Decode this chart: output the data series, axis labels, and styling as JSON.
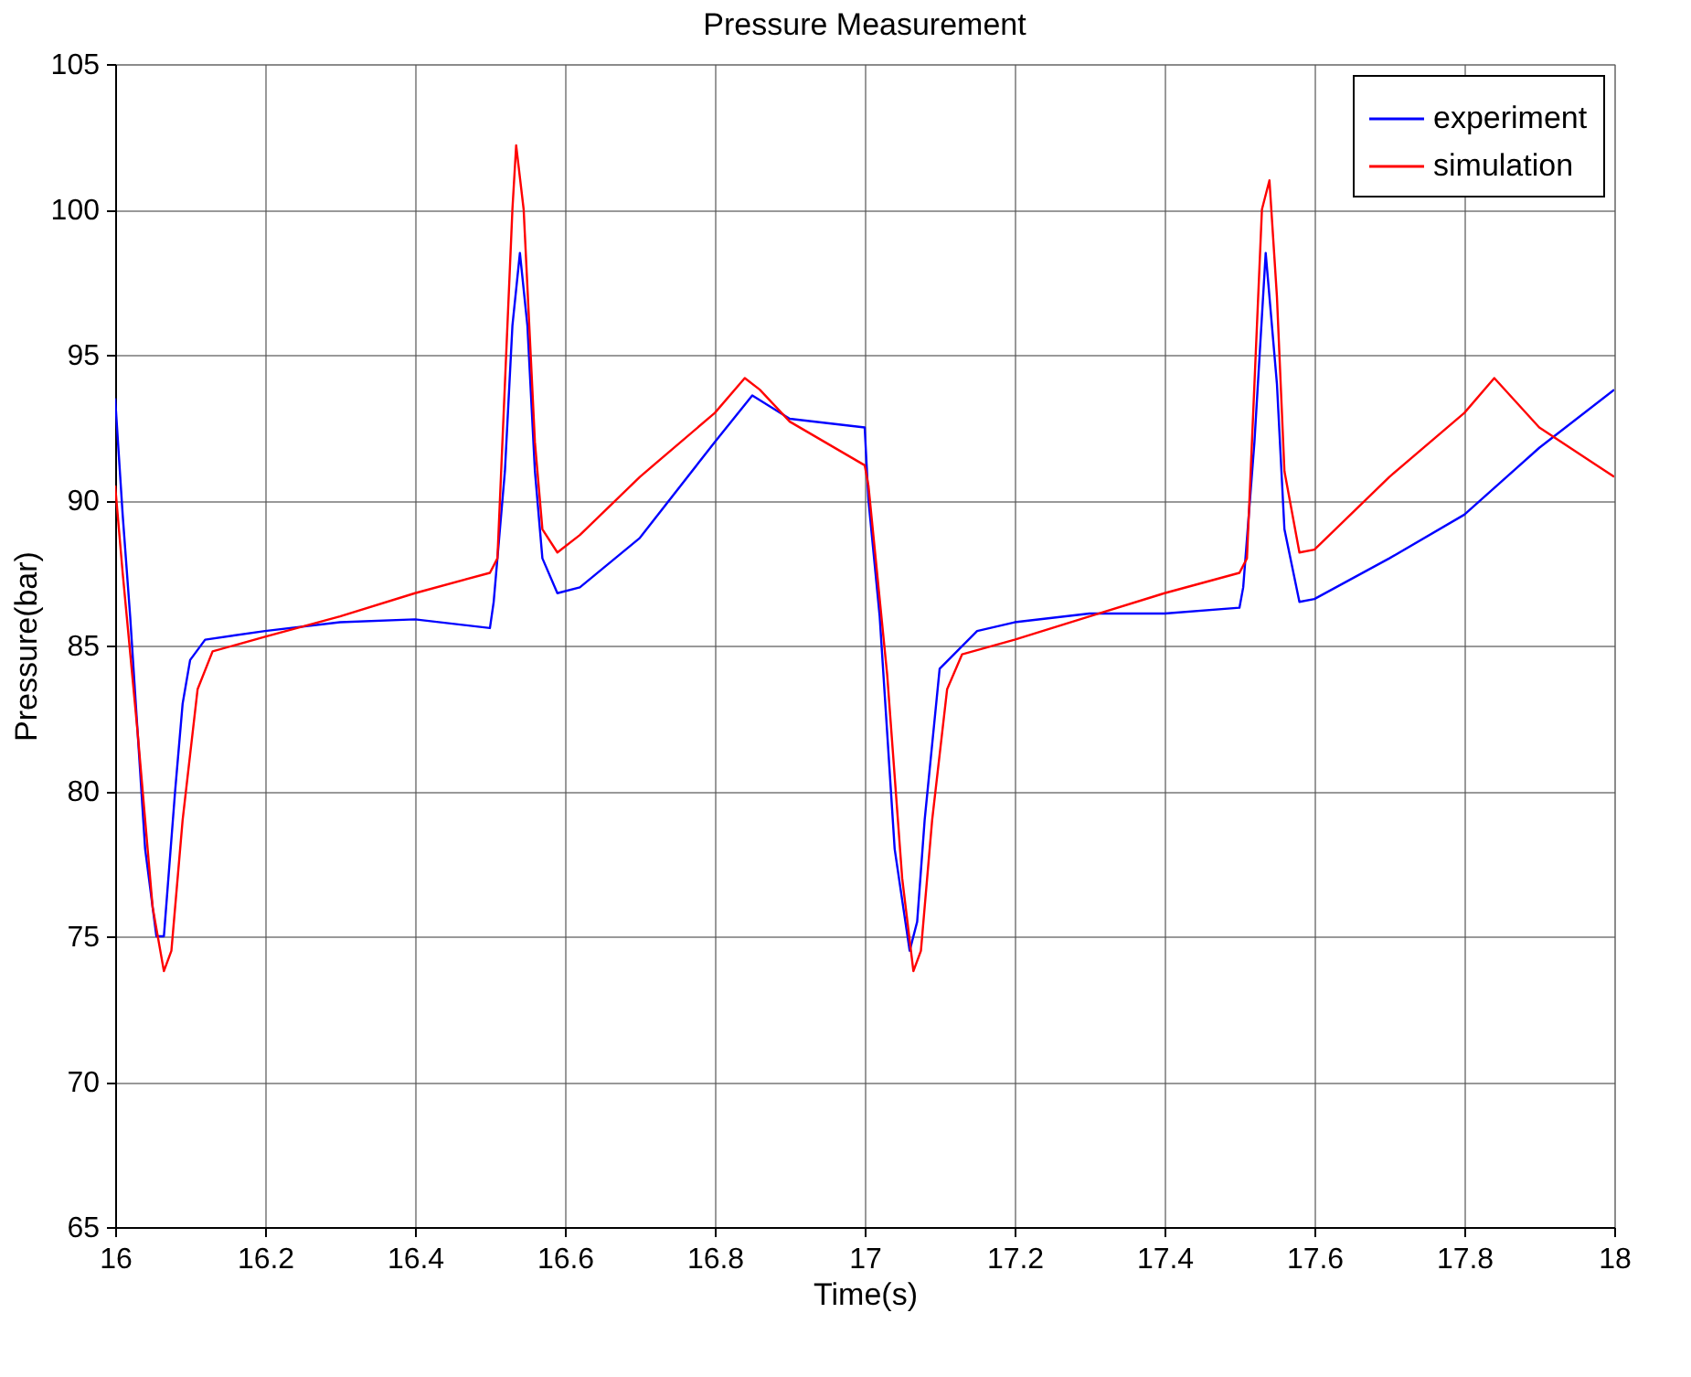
{
  "chart_data": {
    "type": "line",
    "title": "Pressure Measurement",
    "xlabel": "Time(s)",
    "ylabel": "Pressure(bar)",
    "xlim": [
      16,
      18
    ],
    "xticks": [
      16,
      16.2,
      16.4,
      16.6,
      16.8,
      17,
      17.2,
      17.4,
      17.6,
      17.8,
      18
    ],
    "ylim": [
      65,
      105
    ],
    "yticks": [
      65,
      70,
      75,
      80,
      85,
      90,
      95,
      100,
      105
    ],
    "grid": true,
    "legend": "top right",
    "line_style": "solid",
    "marker": "none",
    "series": [
      {
        "name": "experiment",
        "color": "#0000ff",
        "x": [
          16.0,
          16.005,
          16.01,
          16.02,
          16.03,
          16.04,
          16.055,
          16.065,
          16.08,
          16.09,
          16.1,
          16.12,
          16.2,
          16.3,
          16.4,
          16.5,
          16.505,
          16.52,
          16.53,
          16.54,
          16.55,
          16.56,
          16.57,
          16.59,
          16.62,
          16.7,
          16.8,
          16.85,
          16.9,
          17.0,
          17.005,
          17.02,
          17.04,
          17.06,
          17.07,
          17.08,
          17.1,
          17.15,
          17.2,
          17.3,
          17.4,
          17.5,
          17.505,
          17.52,
          17.535,
          17.55,
          17.56,
          17.58,
          17.6,
          17.7,
          17.8,
          17.9,
          18.0
        ],
        "values": [
          93.5,
          91.5,
          89.5,
          86,
          82,
          78,
          75,
          75,
          80,
          83,
          84.5,
          85.2,
          85.5,
          85.8,
          85.9,
          85.6,
          86.5,
          91,
          96,
          98.5,
          96,
          91,
          88,
          86.8,
          87,
          88.7,
          92,
          93.6,
          92.8,
          92.5,
          90,
          86,
          78,
          74.5,
          75.5,
          79,
          84.2,
          85.5,
          85.8,
          86.1,
          86.1,
          86.3,
          87,
          92,
          98.5,
          94,
          89,
          86.5,
          86.6,
          88,
          89.5,
          91.8,
          93.8
        ]
      },
      {
        "name": "simulation",
        "color": "#ff0000",
        "x": [
          16.0,
          16.01,
          16.03,
          16.05,
          16.065,
          16.075,
          16.09,
          16.11,
          16.13,
          16.2,
          16.3,
          16.4,
          16.5,
          16.51,
          16.52,
          16.53,
          16.535,
          16.545,
          16.56,
          16.57,
          16.59,
          16.62,
          16.7,
          16.8,
          16.84,
          16.86,
          16.9,
          17.0,
          17.005,
          17.03,
          17.05,
          17.065,
          17.075,
          17.09,
          17.11,
          17.13,
          17.2,
          17.3,
          17.4,
          17.5,
          17.51,
          17.52,
          17.53,
          17.54,
          17.55,
          17.56,
          17.58,
          17.6,
          17.7,
          17.8,
          17.84,
          17.9,
          18.0
        ],
        "values": [
          90.5,
          87.5,
          82,
          76,
          73.8,
          74.5,
          79,
          83.5,
          84.8,
          85.3,
          86,
          86.8,
          87.5,
          88,
          94,
          100,
          102.2,
          100,
          92,
          89,
          88.2,
          88.8,
          90.8,
          93,
          94.2,
          93.8,
          92.7,
          91.2,
          90.5,
          84,
          77,
          73.8,
          74.5,
          79,
          83.5,
          84.7,
          85.2,
          86,
          86.8,
          87.5,
          88,
          94,
          100,
          101,
          97,
          91,
          88.2,
          88.3,
          90.8,
          93,
          94.2,
          92.5,
          90.8
        ]
      }
    ]
  }
}
